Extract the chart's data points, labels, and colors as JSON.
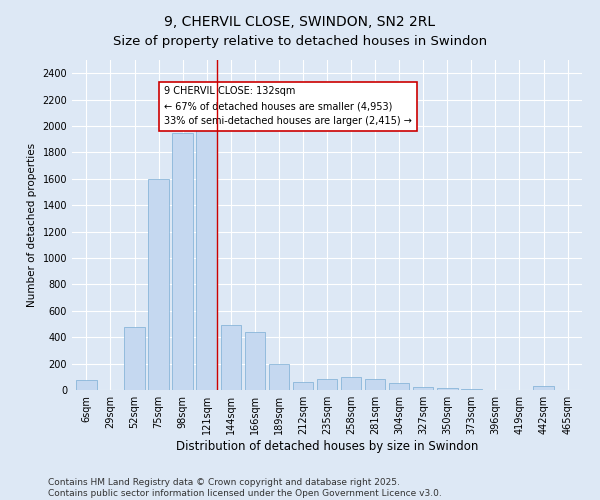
{
  "title": "9, CHERVIL CLOSE, SWINDON, SN2 2RL",
  "subtitle": "Size of property relative to detached houses in Swindon",
  "xlabel": "Distribution of detached houses by size in Swindon",
  "ylabel": "Number of detached properties",
  "categories": [
    "6sqm",
    "29sqm",
    "52sqm",
    "75sqm",
    "98sqm",
    "121sqm",
    "144sqm",
    "166sqm",
    "189sqm",
    "212sqm",
    "235sqm",
    "258sqm",
    "281sqm",
    "304sqm",
    "327sqm",
    "350sqm",
    "373sqm",
    "396sqm",
    "419sqm",
    "442sqm",
    "465sqm"
  ],
  "values": [
    75,
    0,
    475,
    1600,
    1950,
    2000,
    490,
    440,
    195,
    60,
    85,
    100,
    85,
    55,
    25,
    15,
    5,
    0,
    0,
    30,
    0
  ],
  "bar_color": "#c5d8f0",
  "bar_edge_color": "#7aadd4",
  "vline_x_index": 5.42,
  "vline_color": "#cc0000",
  "annotation_text": "9 CHERVIL CLOSE: 132sqm\n← 67% of detached houses are smaller (4,953)\n33% of semi-detached houses are larger (2,415) →",
  "annotation_box_facecolor": "white",
  "annotation_box_edgecolor": "#cc0000",
  "ylim": [
    0,
    2500
  ],
  "yticks": [
    0,
    200,
    400,
    600,
    800,
    1000,
    1200,
    1400,
    1600,
    1800,
    2000,
    2200,
    2400
  ],
  "bg_color": "#dde8f5",
  "plot_bg_color": "#dde8f5",
  "grid_color": "white",
  "footer_text": "Contains HM Land Registry data © Crown copyright and database right 2025.\nContains public sector information licensed under the Open Government Licence v3.0.",
  "title_fontsize": 10,
  "subtitle_fontsize": 9.5,
  "xlabel_fontsize": 8.5,
  "ylabel_fontsize": 7.5,
  "tick_fontsize": 7,
  "annotation_fontsize": 7,
  "footer_fontsize": 6.5
}
